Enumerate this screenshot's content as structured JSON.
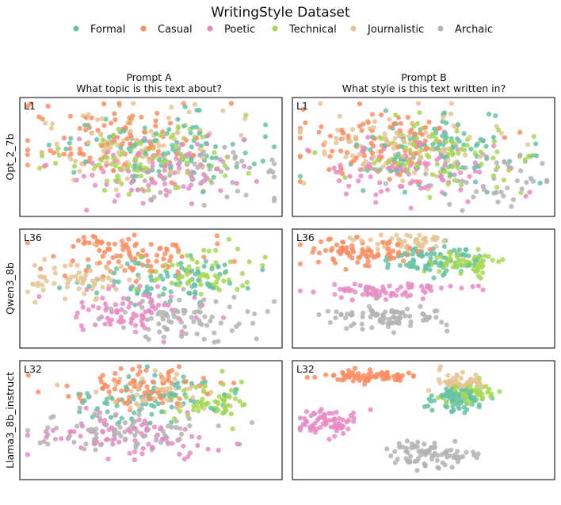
{
  "title": "WritingStyle Dataset",
  "legend": {
    "placement": "top-center",
    "entries": [
      {
        "name": "Formal",
        "color": "#66c2a5"
      },
      {
        "name": "Casual",
        "color": "#fc8d62"
      },
      {
        "name": "Poetic",
        "color": "#e78ac3"
      },
      {
        "name": "Technical",
        "color": "#a6d854"
      },
      {
        "name": "Journalistic",
        "color": "#e5c494"
      },
      {
        "name": "Archaic",
        "color": "#b3b3b3"
      }
    ]
  },
  "columns": [
    {
      "line1": "Prompt A",
      "line2": "What topic is this text about?"
    },
    {
      "line1": "Prompt B",
      "line2": "What style is this text written in?"
    }
  ],
  "rows": [
    {
      "model": "Opt_2_7b",
      "layer": "L1"
    },
    {
      "model": "Qwen3_8b",
      "layer": "L36"
    },
    {
      "model": "Llama3_8b_instruct",
      "layer": "L32"
    }
  ],
  "chart_data": {
    "type": "scatter",
    "grid": false,
    "axes_ticks": false,
    "series_order": [
      "Formal",
      "Casual",
      "Poetic",
      "Technical",
      "Journalistic",
      "Archaic"
    ],
    "panels": [
      {
        "row": 0,
        "col": 0,
        "label": "L1",
        "xlim": [
          0,
          1
        ],
        "ylim": [
          0,
          1
        ],
        "clusters": [
          {
            "series": "Formal",
            "cx": 0.52,
            "cy": 0.58,
            "sx": 0.18,
            "sy": 0.15,
            "n": 90
          },
          {
            "series": "Casual",
            "cx": 0.32,
            "cy": 0.65,
            "sx": 0.18,
            "sy": 0.15,
            "n": 90
          },
          {
            "series": "Poetic",
            "cx": 0.55,
            "cy": 0.38,
            "sx": 0.17,
            "sy": 0.14,
            "n": 90
          },
          {
            "series": "Technical",
            "cx": 0.5,
            "cy": 0.5,
            "sx": 0.18,
            "sy": 0.15,
            "n": 90
          },
          {
            "series": "Journalistic",
            "cx": 0.4,
            "cy": 0.62,
            "sx": 0.18,
            "sy": 0.15,
            "n": 90
          },
          {
            "series": "Archaic",
            "cx": 0.72,
            "cy": 0.35,
            "sx": 0.14,
            "sy": 0.12,
            "n": 50
          }
        ]
      },
      {
        "row": 0,
        "col": 1,
        "label": "L1",
        "xlim": [
          0,
          1
        ],
        "ylim": [
          0,
          1
        ],
        "clusters": [
          {
            "series": "Formal",
            "cx": 0.52,
            "cy": 0.55,
            "sx": 0.17,
            "sy": 0.15,
            "n": 90
          },
          {
            "series": "Casual",
            "cx": 0.32,
            "cy": 0.62,
            "sx": 0.17,
            "sy": 0.15,
            "n": 90
          },
          {
            "series": "Poetic",
            "cx": 0.5,
            "cy": 0.4,
            "sx": 0.17,
            "sy": 0.14,
            "n": 90
          },
          {
            "series": "Technical",
            "cx": 0.55,
            "cy": 0.52,
            "sx": 0.17,
            "sy": 0.15,
            "n": 90
          },
          {
            "series": "Journalistic",
            "cx": 0.4,
            "cy": 0.6,
            "sx": 0.18,
            "sy": 0.15,
            "n": 90
          },
          {
            "series": "Archaic",
            "cx": 0.75,
            "cy": 0.32,
            "sx": 0.13,
            "sy": 0.12,
            "n": 50
          }
        ]
      },
      {
        "row": 1,
        "col": 0,
        "label": "L36",
        "xlim": [
          0,
          1
        ],
        "ylim": [
          0,
          1
        ],
        "clusters": [
          {
            "series": "Formal",
            "cx": 0.55,
            "cy": 0.58,
            "sx": 0.14,
            "sy": 0.1,
            "n": 80
          },
          {
            "series": "Casual",
            "cx": 0.42,
            "cy": 0.8,
            "sx": 0.16,
            "sy": 0.09,
            "n": 90
          },
          {
            "series": "Poetic",
            "cx": 0.42,
            "cy": 0.32,
            "sx": 0.14,
            "sy": 0.1,
            "n": 80
          },
          {
            "series": "Technical",
            "cx": 0.68,
            "cy": 0.62,
            "sx": 0.1,
            "sy": 0.1,
            "n": 60
          },
          {
            "series": "Journalistic",
            "cx": 0.22,
            "cy": 0.58,
            "sx": 0.1,
            "sy": 0.1,
            "n": 60
          },
          {
            "series": "Archaic",
            "cx": 0.62,
            "cy": 0.25,
            "sx": 0.13,
            "sy": 0.1,
            "n": 80
          }
        ]
      },
      {
        "row": 1,
        "col": 1,
        "label": "L36",
        "xlim": [
          0,
          1
        ],
        "ylim": [
          0,
          1
        ],
        "clusters": [
          {
            "series": "Formal",
            "cx": 0.55,
            "cy": 0.75,
            "sx": 0.1,
            "sy": 0.06,
            "n": 80
          },
          {
            "series": "Casual",
            "cx": 0.28,
            "cy": 0.82,
            "sx": 0.1,
            "sy": 0.06,
            "n": 80
          },
          {
            "series": "Poetic",
            "cx": 0.36,
            "cy": 0.48,
            "sx": 0.14,
            "sy": 0.035,
            "n": 70
          },
          {
            "series": "Technical",
            "cx": 0.66,
            "cy": 0.72,
            "sx": 0.07,
            "sy": 0.05,
            "n": 60
          },
          {
            "series": "Journalistic",
            "cx": 0.42,
            "cy": 0.88,
            "sx": 0.08,
            "sy": 0.04,
            "n": 50
          },
          {
            "series": "Archaic",
            "cx": 0.35,
            "cy": 0.26,
            "sx": 0.13,
            "sy": 0.06,
            "n": 80
          }
        ]
      },
      {
        "row": 2,
        "col": 0,
        "label": "L32",
        "xlim": [
          0,
          1
        ],
        "ylim": [
          0,
          1
        ],
        "clusters": [
          {
            "series": "Formal",
            "cx": 0.5,
            "cy": 0.68,
            "sx": 0.15,
            "sy": 0.1,
            "n": 80
          },
          {
            "series": "Casual",
            "cx": 0.45,
            "cy": 0.78,
            "sx": 0.14,
            "sy": 0.09,
            "n": 80
          },
          {
            "series": "Poetic",
            "cx": 0.42,
            "cy": 0.35,
            "sx": 0.17,
            "sy": 0.1,
            "n": 80
          },
          {
            "series": "Technical",
            "cx": 0.72,
            "cy": 0.65,
            "sx": 0.09,
            "sy": 0.08,
            "n": 60
          },
          {
            "series": "Journalistic",
            "cx": 0.55,
            "cy": 0.75,
            "sx": 0.12,
            "sy": 0.08,
            "n": 50
          },
          {
            "series": "Archaic",
            "cx": 0.4,
            "cy": 0.4,
            "sx": 0.18,
            "sy": 0.08,
            "n": 80
          }
        ]
      },
      {
        "row": 2,
        "col": 1,
        "label": "L32",
        "xlim": [
          0,
          1
        ],
        "ylim": [
          0,
          1
        ],
        "clusters": [
          {
            "series": "Formal",
            "cx": 0.62,
            "cy": 0.68,
            "sx": 0.05,
            "sy": 0.05,
            "n": 80
          },
          {
            "series": "Casual",
            "cx": 0.32,
            "cy": 0.87,
            "sx": 0.09,
            "sy": 0.025,
            "n": 70
          },
          {
            "series": "Poetic",
            "cx": 0.12,
            "cy": 0.48,
            "sx": 0.06,
            "sy": 0.05,
            "n": 70
          },
          {
            "series": "Technical",
            "cx": 0.68,
            "cy": 0.72,
            "sx": 0.05,
            "sy": 0.04,
            "n": 50
          },
          {
            "series": "Journalistic",
            "cx": 0.64,
            "cy": 0.82,
            "sx": 0.05,
            "sy": 0.04,
            "n": 50
          },
          {
            "series": "Archaic",
            "cx": 0.52,
            "cy": 0.22,
            "sx": 0.1,
            "sy": 0.06,
            "n": 80
          }
        ]
      }
    ]
  }
}
